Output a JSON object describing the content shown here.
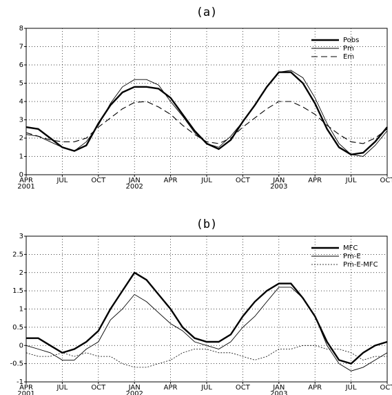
{
  "chart_data": [
    {
      "type": "line",
      "title": "(a)",
      "x": [
        "2001-04",
        "2001-05",
        "2001-06",
        "2001-07",
        "2001-08",
        "2001-09",
        "2001-10",
        "2001-11",
        "2001-12",
        "2002-01",
        "2002-02",
        "2002-03",
        "2002-04",
        "2002-05",
        "2002-06",
        "2002-07",
        "2002-08",
        "2002-09",
        "2002-10",
        "2002-11",
        "2002-12",
        "2003-01",
        "2003-02",
        "2003-03",
        "2003-04",
        "2003-05",
        "2003-06",
        "2003-07",
        "2003-08",
        "2003-09",
        "2003-10"
      ],
      "series": [
        {
          "name": "Pobs",
          "color": "#000000",
          "width": 2.4,
          "dash": "none",
          "values": [
            2.6,
            2.5,
            2.0,
            1.5,
            1.3,
            1.6,
            2.8,
            3.8,
            4.5,
            4.8,
            4.8,
            4.7,
            4.2,
            3.3,
            2.4,
            1.7,
            1.4,
            1.9,
            2.9,
            3.8,
            4.8,
            5.6,
            5.6,
            5.0,
            3.9,
            2.5,
            1.5,
            1.1,
            1.2,
            1.8,
            2.6
          ]
        },
        {
          "name": "Pm",
          "color": "#000000",
          "width": 0.9,
          "dash": "none",
          "values": [
            2.2,
            2.1,
            1.8,
            1.5,
            1.3,
            1.8,
            2.7,
            3.9,
            4.8,
            5.2,
            5.2,
            4.9,
            4.0,
            3.2,
            2.3,
            1.7,
            1.5,
            2.1,
            2.9,
            3.8,
            4.8,
            5.6,
            5.7,
            5.3,
            4.2,
            2.8,
            1.7,
            1.1,
            1.0,
            1.6,
            2.4
          ]
        },
        {
          "name": "Em",
          "color": "#000000",
          "width": 1.1,
          "dash": "9 5",
          "values": [
            2.3,
            2.1,
            1.9,
            1.8,
            1.8,
            2.0,
            2.6,
            3.1,
            3.6,
            3.95,
            4.0,
            3.7,
            3.3,
            2.7,
            2.2,
            1.8,
            1.7,
            2.0,
            2.6,
            3.1,
            3.6,
            4.0,
            4.0,
            3.7,
            3.3,
            2.7,
            2.2,
            1.8,
            1.7,
            2.0,
            2.5
          ]
        }
      ],
      "xlim": [
        "2001-04",
        "2003-10"
      ],
      "xticks": [
        {
          "value": "2001-04",
          "label": "APR",
          "year": "2001"
        },
        {
          "value": "2001-07",
          "label": "JUL"
        },
        {
          "value": "2001-10",
          "label": "OCT"
        },
        {
          "value": "2002-01",
          "label": "JAN",
          "year": "2002"
        },
        {
          "value": "2002-04",
          "label": "APR"
        },
        {
          "value": "2002-07",
          "label": "JUL"
        },
        {
          "value": "2002-10",
          "label": "OCT"
        },
        {
          "value": "2003-01",
          "label": "JAN",
          "year": "2003"
        },
        {
          "value": "2003-04",
          "label": "APR"
        },
        {
          "value": "2003-07",
          "label": "JUL"
        },
        {
          "value": "2003-10",
          "label": "OCT"
        }
      ],
      "ylim": [
        0,
        8
      ],
      "yticks": [
        0,
        1,
        2,
        3,
        4,
        5,
        6,
        7,
        8
      ],
      "grid": true,
      "legend": "top-right"
    },
    {
      "type": "line",
      "title": "(b)",
      "x": [
        "2001-04",
        "2001-05",
        "2001-06",
        "2001-07",
        "2001-08",
        "2001-09",
        "2001-10",
        "2001-11",
        "2001-12",
        "2002-01",
        "2002-02",
        "2002-03",
        "2002-04",
        "2002-05",
        "2002-06",
        "2002-07",
        "2002-08",
        "2002-09",
        "2002-10",
        "2002-11",
        "2002-12",
        "2003-01",
        "2003-02",
        "2003-03",
        "2003-04",
        "2003-05",
        "2003-06",
        "2003-07",
        "2003-08",
        "2003-09",
        "2003-10"
      ],
      "series": [
        {
          "name": "MFC",
          "color": "#000000",
          "width": 2.4,
          "dash": "none",
          "values": [
            0.2,
            0.2,
            0.0,
            -0.2,
            -0.1,
            0.1,
            0.4,
            1.0,
            1.5,
            2.0,
            1.8,
            1.4,
            1.0,
            0.5,
            0.2,
            0.1,
            0.1,
            0.3,
            0.8,
            1.2,
            1.5,
            1.7,
            1.7,
            1.3,
            0.8,
            0.1,
            -0.4,
            -0.5,
            -0.2,
            0.0,
            0.1
          ]
        },
        {
          "name": "Pm-E",
          "color": "#000000",
          "width": 0.9,
          "dash": "none",
          "values": [
            0.0,
            -0.1,
            -0.2,
            -0.4,
            -0.4,
            -0.1,
            0.1,
            0.7,
            1.0,
            1.4,
            1.2,
            0.9,
            0.6,
            0.4,
            0.1,
            0.0,
            -0.1,
            0.1,
            0.5,
            0.8,
            1.2,
            1.6,
            1.6,
            1.3,
            0.8,
            0.0,
            -0.5,
            -0.7,
            -0.6,
            -0.4,
            -0.2
          ]
        },
        {
          "name": "Pm-E-MFC",
          "color": "#000000",
          "width": 0.8,
          "dash": "2 2",
          "values": [
            -0.2,
            -0.3,
            -0.3,
            -0.2,
            -0.3,
            -0.2,
            -0.3,
            -0.3,
            -0.5,
            -0.6,
            -0.6,
            -0.5,
            -0.4,
            -0.2,
            -0.1,
            -0.1,
            -0.2,
            -0.2,
            -0.3,
            -0.4,
            -0.3,
            -0.1,
            -0.1,
            0.0,
            0.0,
            -0.1,
            -0.1,
            -0.2,
            -0.4,
            -0.3,
            -0.3
          ]
        }
      ],
      "xlim": [
        "2001-04",
        "2003-10"
      ],
      "xticks": [
        {
          "value": "2001-04",
          "label": "APR",
          "year": "2001"
        },
        {
          "value": "2001-07",
          "label": "JUL"
        },
        {
          "value": "2001-10",
          "label": "OCT"
        },
        {
          "value": "2002-01",
          "label": "JAN",
          "year": "2002"
        },
        {
          "value": "2002-04",
          "label": "APR"
        },
        {
          "value": "2002-07",
          "label": "JUL"
        },
        {
          "value": "2002-10",
          "label": "OCT"
        },
        {
          "value": "2003-01",
          "label": "JAN",
          "year": "2003"
        },
        {
          "value": "2003-04",
          "label": "APR"
        },
        {
          "value": "2003-07",
          "label": "JUL"
        },
        {
          "value": "2003-10",
          "label": "OCT"
        }
      ],
      "ylim": [
        -1,
        3
      ],
      "yticks": [
        -1,
        -0.5,
        0,
        0.5,
        1,
        1.5,
        2,
        2.5,
        3
      ],
      "grid": true,
      "legend": "top-right"
    }
  ]
}
